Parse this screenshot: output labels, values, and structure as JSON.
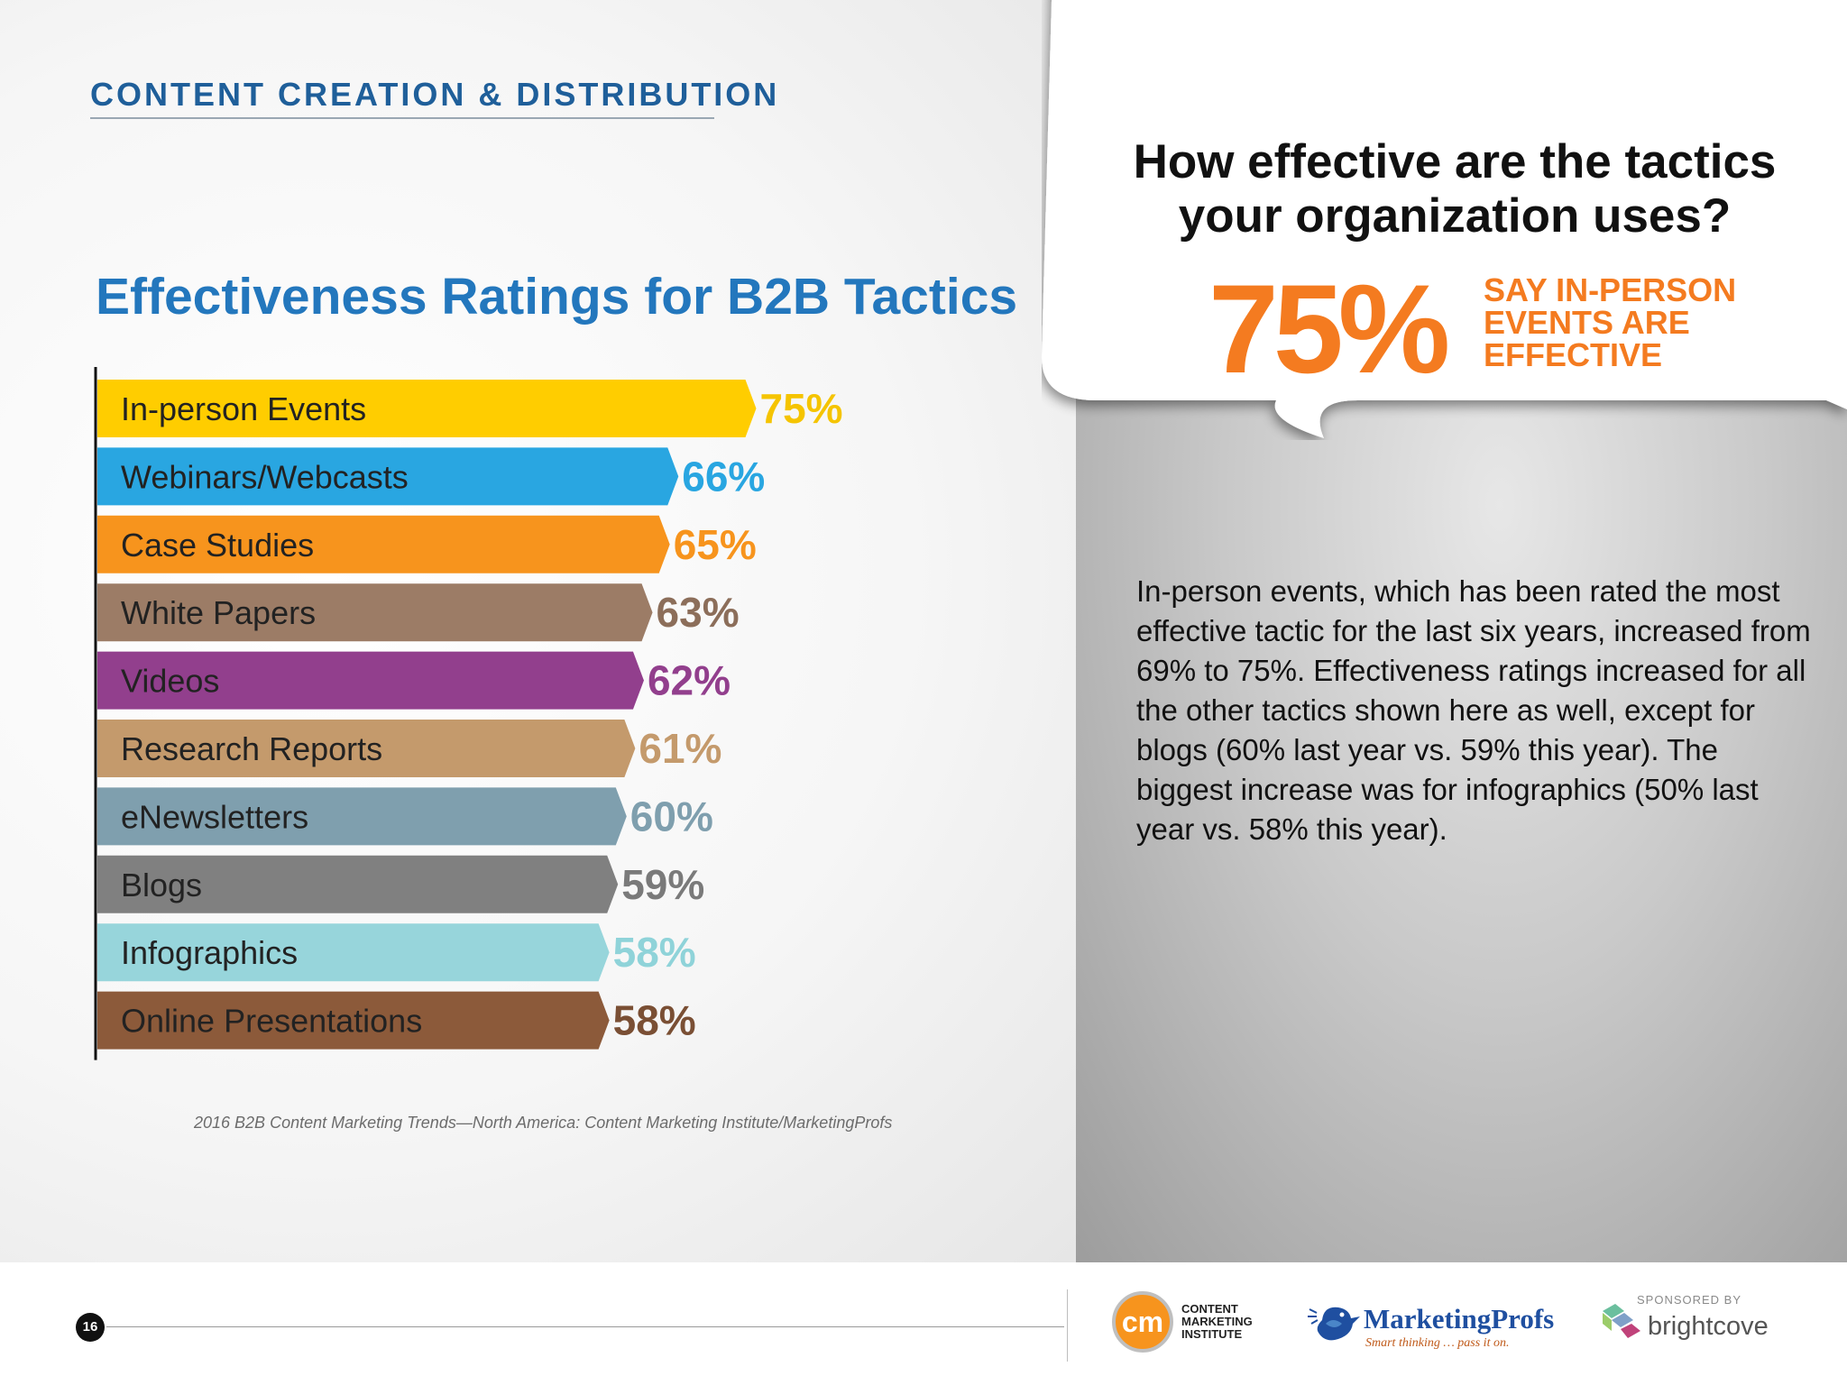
{
  "section_header": "CONTENT CREATION & DISTRIBUTION",
  "source": "2016 B2B Content Marketing Trends—North America: Content Marketing Institute/MarketingProfs",
  "callout": {
    "question": "How effective are the tactics your organization uses?",
    "stat": "75%",
    "stat_label": "SAY IN-PERSON EVENTS ARE EFFECTIVE"
  },
  "body_text": "In-person events, which has been rated the most effective tactic for the last six years, increased from 69% to 75%. Effectiveness ratings increased for all the other tactics shown here as well, except for blogs (60% last year vs. 59% this year). The biggest increase was for infographics (50% last year vs. 58% this year).",
  "footer": {
    "page_number": "16",
    "cmi_logo_text": "cm",
    "cmi_name": [
      "CONTENT",
      "MARKETING",
      "INSTITUTE"
    ],
    "mp_name": "MarketingProfs",
    "mp_tagline": "Smart thinking … pass it on.",
    "sponsored_by": "SPONSORED BY",
    "brightcove": "brightcove"
  },
  "chart_data": {
    "type": "bar",
    "orientation": "horizontal",
    "title": "Effectiveness Ratings for B2B Tactics",
    "categories": [
      "In-person Events",
      "Webinars/Webcasts",
      "Case Studies",
      "White Papers",
      "Videos",
      "Research Reports",
      "eNewsletters",
      "Blogs",
      "Infographics",
      "Online Presentations"
    ],
    "values": [
      75,
      66,
      65,
      63,
      62,
      61,
      60,
      59,
      58,
      58
    ],
    "value_labels": [
      "75%",
      "66%",
      "65%",
      "63%",
      "62%",
      "61%",
      "60%",
      "59%",
      "58%",
      "58%"
    ],
    "unit": "%",
    "colors": [
      "#ffcd00",
      "#29a6e1",
      "#f7941d",
      "#9c7c66",
      "#923f8d",
      "#c49a6c",
      "#7f9fae",
      "#808080",
      "#97d5db",
      "#8c5a3a"
    ],
    "label_colors": [
      "#f5c400",
      "#29a6e1",
      "#f7941d",
      "#8c6e5a",
      "#923f8d",
      "#c49a6c",
      "#7f9fae",
      "#7a7a7a",
      "#8fd3d9",
      "#7a4f34"
    ],
    "grid": false,
    "legend": "none"
  }
}
